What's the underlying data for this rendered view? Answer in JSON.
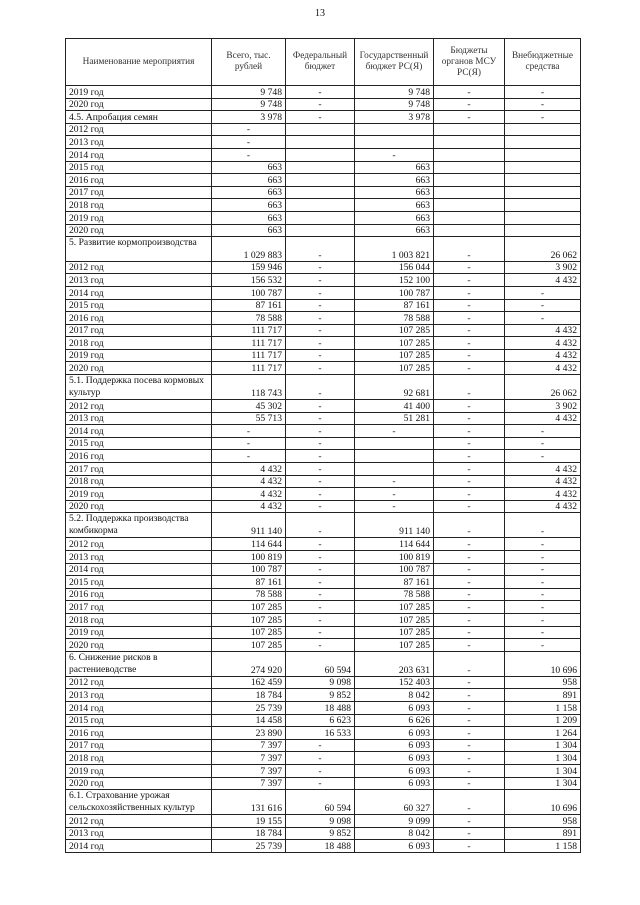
{
  "page_number": "13",
  "table": {
    "headers": [
      "Наименование мероприятия",
      "Всего, тыс. рублей",
      "Федеральный бюджет",
      "Государственный бюджет РС(Я)",
      "Бюджеты органов МСУ РС(Я)",
      "Внебюджетные средства"
    ],
    "rows": [
      {
        "cells": [
          "2019 год",
          "9 748",
          "-",
          "9 748",
          "-",
          "-"
        ]
      },
      {
        "cells": [
          "2020 год",
          "9 748",
          "-",
          "9 748",
          "-",
          "-"
        ]
      },
      {
        "cells": [
          "4.5. Апробация семян",
          "3 978",
          "-",
          "3 978",
          "-",
          "-"
        ]
      },
      {
        "cells": [
          "2012 год",
          "-",
          "",
          "",
          "",
          ""
        ]
      },
      {
        "cells": [
          "2013 год",
          "-",
          "",
          "",
          "",
          ""
        ]
      },
      {
        "cells": [
          "2014 год",
          "-",
          "",
          "-",
          "",
          ""
        ]
      },
      {
        "cells": [
          "2015 год",
          "663",
          "",
          "663",
          "",
          ""
        ]
      },
      {
        "cells": [
          "2016 год",
          "663",
          "",
          "663",
          "",
          ""
        ]
      },
      {
        "cells": [
          "2017 год",
          "663",
          "",
          "663",
          "",
          ""
        ]
      },
      {
        "cells": [
          "2018 год",
          "663",
          "",
          "663",
          "",
          ""
        ]
      },
      {
        "cells": [
          "2019 год",
          "663",
          "",
          "663",
          "",
          ""
        ]
      },
      {
        "cells": [
          "2020 год",
          "663",
          "",
          "663",
          "",
          ""
        ]
      },
      {
        "tall": true,
        "cells": [
          "5. Развитие кормопроизводства",
          "1 029 883",
          "-",
          "1 003 821",
          "-",
          "26 062"
        ]
      },
      {
        "cells": [
          "2012 год",
          "159 946",
          "-",
          "156 044",
          "-",
          "3 902"
        ]
      },
      {
        "cells": [
          "2013 год",
          "156 532",
          "-",
          "152 100",
          "-",
          "4 432"
        ]
      },
      {
        "cells": [
          "2014 год",
          "100 787",
          "-",
          "100 787",
          "-",
          "-"
        ]
      },
      {
        "cells": [
          "2015 год",
          "87 161",
          "-",
          "87 161",
          "-",
          "-"
        ]
      },
      {
        "cells": [
          "2016 год",
          "78 588",
          "-",
          "78 588",
          "-",
          "-"
        ]
      },
      {
        "cells": [
          "2017 год",
          "111 717",
          "-",
          "107 285",
          "-",
          "4 432"
        ]
      },
      {
        "cells": [
          "2018 год",
          "111 717",
          "-",
          "107 285",
          "-",
          "4 432"
        ]
      },
      {
        "cells": [
          "2019 год",
          "111 717",
          "-",
          "107 285",
          "-",
          "4 432"
        ]
      },
      {
        "cells": [
          "2020 год",
          "111 717",
          "-",
          "107 285",
          "-",
          "4 432"
        ]
      },
      {
        "tall": true,
        "cells": [
          "5.1. Поддержка посева кормовых культур",
          "118 743",
          "-",
          "92 681",
          "-",
          "26 062"
        ]
      },
      {
        "cells": [
          "2012 год",
          "45 302",
          "-",
          "41 400",
          "-",
          "3 902"
        ]
      },
      {
        "cells": [
          "2013 год",
          "55 713",
          "-",
          "51 281",
          "-",
          "4 432"
        ]
      },
      {
        "cells": [
          "2014 год",
          "-",
          "-",
          "-",
          "-",
          "-"
        ]
      },
      {
        "cells": [
          "2015 год",
          "-",
          "-",
          "",
          "-",
          "-"
        ]
      },
      {
        "cells": [
          "2016 год",
          "-",
          "-",
          "",
          "-",
          "-"
        ]
      },
      {
        "cells": [
          "2017 год",
          "4 432",
          "-",
          "",
          "-",
          "4 432"
        ]
      },
      {
        "cells": [
          "2018 год",
          "4 432",
          "-",
          "-",
          "-",
          "4 432"
        ]
      },
      {
        "cells": [
          "2019 год",
          "4 432",
          "-",
          "-",
          "-",
          "4 432"
        ]
      },
      {
        "cells": [
          "2020 год",
          "4 432",
          "-",
          "-",
          "-",
          "4 432"
        ]
      },
      {
        "tall": true,
        "cells": [
          "5.2. Поддержка производства комбикорма",
          "911 140",
          "-",
          "911 140",
          "-",
          "-"
        ]
      },
      {
        "cells": [
          "2012 год",
          "114 644",
          "-",
          "114 644",
          "-",
          "-"
        ]
      },
      {
        "cells": [
          "2013 год",
          "100 819",
          "-",
          "100 819",
          "-",
          "-"
        ]
      },
      {
        "cells": [
          "2014 год",
          "100 787",
          "-",
          "100 787",
          "-",
          "-"
        ]
      },
      {
        "cells": [
          "2015 год",
          "87 161",
          "-",
          "87 161",
          "-",
          "-"
        ]
      },
      {
        "cells": [
          "2016 год",
          "78 588",
          "-",
          "78 588",
          "-",
          "-"
        ]
      },
      {
        "cells": [
          "2017 год",
          "107 285",
          "-",
          "107 285",
          "-",
          "-"
        ]
      },
      {
        "cells": [
          "2018 год",
          "107 285",
          "-",
          "107 285",
          "-",
          "-"
        ]
      },
      {
        "cells": [
          "2019 год",
          "107 285",
          "-",
          "107 285",
          "-",
          "-"
        ]
      },
      {
        "cells": [
          "2020 год",
          "107 285",
          "-",
          "107 285",
          "-",
          "-"
        ]
      },
      {
        "tall": true,
        "cells": [
          "6. Снижение рисков в растениеводстве",
          "274 920",
          "60 594",
          "203 631",
          "-",
          "10 696"
        ]
      },
      {
        "cells": [
          "2012 год",
          "162 459",
          "9 098",
          "152 403",
          "-",
          "958"
        ]
      },
      {
        "cells": [
          "2013 год",
          "18 784",
          "9 852",
          "8 042",
          "-",
          "891"
        ]
      },
      {
        "cells": [
          "2014 год",
          "25 739",
          "18 488",
          "6 093",
          "-",
          "1 158"
        ]
      },
      {
        "cells": [
          "2015 год",
          "14 458",
          "6 623",
          "6 626",
          "-",
          "1 209"
        ]
      },
      {
        "cells": [
          "2016 год",
          "23 890",
          "16 533",
          "6 093",
          "-",
          "1 264"
        ]
      },
      {
        "cells": [
          "2017 год",
          "7 397",
          "-",
          "6 093",
          "-",
          "1 304"
        ]
      },
      {
        "cells": [
          "2018 год",
          "7 397",
          "-",
          "6 093",
          "-",
          "1 304"
        ]
      },
      {
        "cells": [
          "2019 год",
          "7 397",
          "-",
          "6 093",
          "-",
          "1 304"
        ]
      },
      {
        "cells": [
          "2020 год",
          "7 397",
          "-",
          "6 093",
          "-",
          "1 304"
        ]
      },
      {
        "tall": true,
        "cells": [
          "6.1. Страхование урожая сельскохозяйственных культур",
          "131 616",
          "60 594",
          "60 327",
          "-",
          "10 696"
        ]
      },
      {
        "cells": [
          "2012 год",
          "19 155",
          "9 098",
          "9 099",
          "-",
          "958"
        ]
      },
      {
        "cells": [
          "2013 год",
          "18 784",
          "9 852",
          "8 042",
          "-",
          "891"
        ]
      },
      {
        "cells": [
          "2014 год",
          "25 739",
          "18 488",
          "6 093",
          "-",
          "1 158"
        ]
      }
    ]
  }
}
